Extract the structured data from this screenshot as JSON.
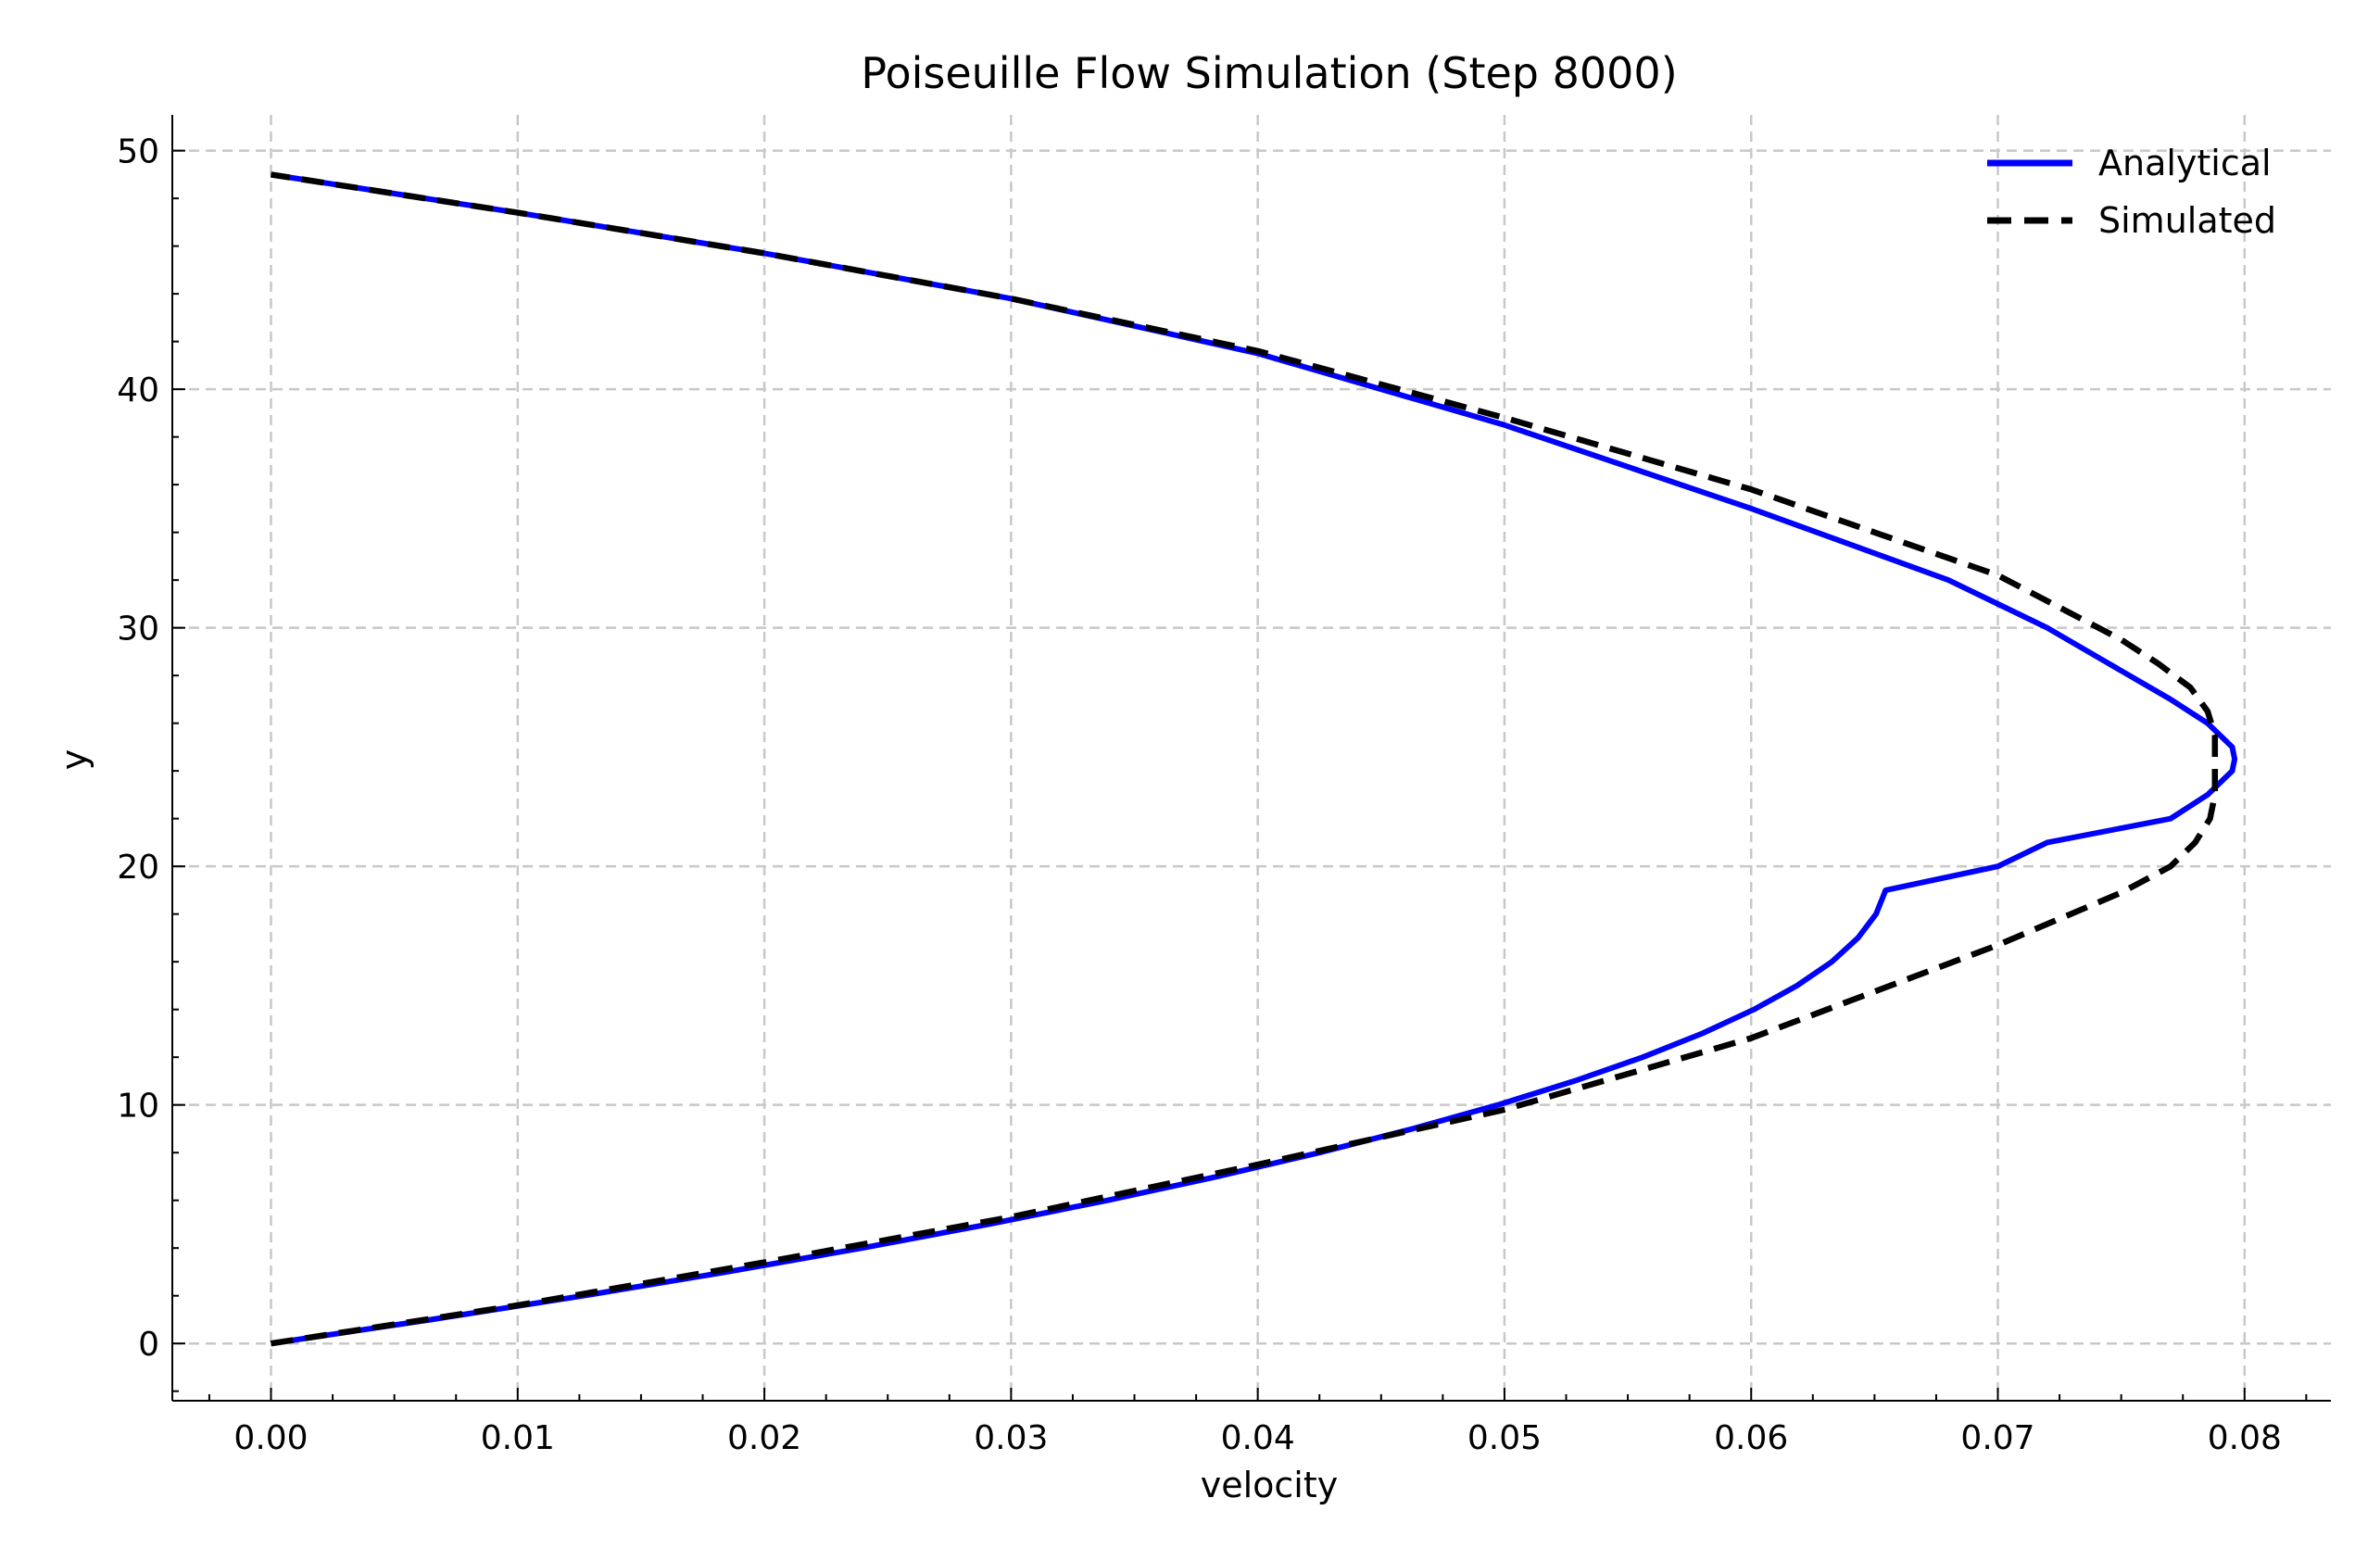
{
  "chart_data": {
    "type": "line",
    "title": "Poiseuille Flow Simulation (Step 8000)",
    "xlabel": "velocity",
    "ylabel": "y",
    "xlim": [
      -0.004,
      0.0835
    ],
    "ylim": [
      -2.4,
      51.5
    ],
    "x_ticks": [
      0.0,
      0.01,
      0.02,
      0.03,
      0.04,
      0.05,
      0.06,
      0.07,
      0.08
    ],
    "x_tick_labels": [
      "0.00",
      "0.01",
      "0.02",
      "0.03",
      "0.04",
      "0.05",
      "0.06",
      "0.07",
      "0.08"
    ],
    "y_ticks": [
      0,
      10,
      20,
      30,
      40,
      50
    ],
    "y_tick_labels": [
      "0",
      "10",
      "20",
      "30",
      "40",
      "50"
    ],
    "grid": true,
    "legend_position": "top-right",
    "axis_orientation": "velocity on horizontal axis, y on vertical axis",
    "series": [
      {
        "name": "Analytical",
        "color": "#0000ff",
        "line_style": "solid",
        "points": [
          [
            0.0,
            0
          ],
          [
            0.0065,
            1
          ],
          [
            0.01266,
            2
          ],
          [
            0.01848,
            3
          ],
          [
            0.02396,
            4
          ],
          [
            0.0291,
            5
          ],
          [
            0.03391,
            6
          ],
          [
            0.03837,
            7
          ],
          [
            0.0425,
            8
          ],
          [
            0.04628,
            9
          ],
          [
            0.04973,
            10
          ],
          [
            0.05283,
            11
          ],
          [
            0.0556,
            12
          ],
          [
            0.05803,
            13
          ],
          [
            0.06011,
            14
          ],
          [
            0.06186,
            15
          ],
          [
            0.06327,
            16
          ],
          [
            0.06433,
            17
          ],
          [
            0.06506,
            18
          ],
          [
            0.06545,
            19
          ],
          [
            0.07,
            20
          ],
          [
            0.072,
            21
          ],
          [
            0.077,
            22
          ],
          [
            0.0785,
            23
          ],
          [
            0.0795,
            24
          ],
          [
            0.0796,
            24.5
          ],
          [
            0.0795,
            25
          ],
          [
            0.0785,
            26
          ],
          [
            0.077,
            27
          ],
          [
            0.0745,
            28.5
          ],
          [
            0.072,
            30
          ],
          [
            0.068,
            32
          ],
          [
            0.06,
            35
          ],
          [
            0.05,
            38.5
          ],
          [
            0.04,
            41.5
          ],
          [
            0.03,
            43.8
          ],
          [
            0.02,
            45.7
          ],
          [
            0.01,
            47.4
          ],
          [
            0.0,
            49
          ]
        ]
      },
      {
        "name": "Simulated",
        "color": "#000000",
        "line_style": "dashed",
        "points": [
          [
            0.0,
            0
          ],
          [
            0.01,
            1.6
          ],
          [
            0.02,
            3.4
          ],
          [
            0.03,
            5.3
          ],
          [
            0.04,
            7.5
          ],
          [
            0.05,
            9.8
          ],
          [
            0.06,
            12.8
          ],
          [
            0.07,
            16.7
          ],
          [
            0.075,
            18.9
          ],
          [
            0.077,
            20.0
          ],
          [
            0.078,
            21.0
          ],
          [
            0.0786,
            22.0
          ],
          [
            0.0788,
            23.0
          ],
          [
            0.0788,
            24.5
          ],
          [
            0.0788,
            25.5
          ],
          [
            0.0785,
            26.5
          ],
          [
            0.0778,
            27.5
          ],
          [
            0.0765,
            28.5
          ],
          [
            0.075,
            29.5
          ],
          [
            0.07,
            32.2
          ],
          [
            0.06,
            35.8
          ],
          [
            0.05,
            38.8
          ],
          [
            0.04,
            41.6
          ],
          [
            0.03,
            43.8
          ],
          [
            0.02,
            45.7
          ],
          [
            0.01,
            47.4
          ],
          [
            0.0,
            49
          ]
        ]
      }
    ]
  }
}
